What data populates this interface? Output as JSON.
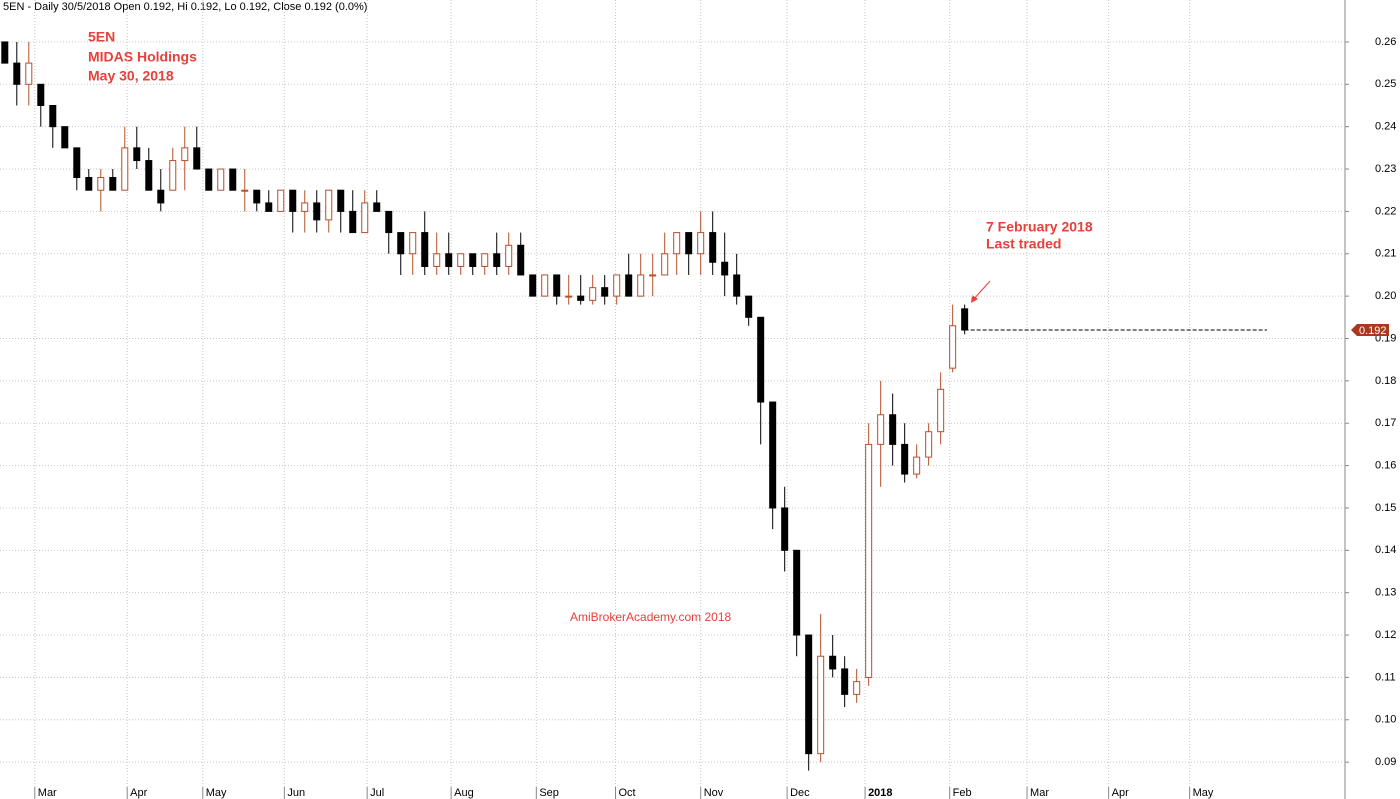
{
  "chart_data": {
    "type": "candlestick",
    "title": "5EN - Daily 30/5/2018 Open 0.192, Hi 0.192, Lo 0.192, Close 0.192 (0.0%)",
    "annotations": [
      "5EN",
      "MIDAS Holdings",
      "May 30, 2018",
      "7 February 2018",
      "Last traded",
      "AmiBrokerAcademy.com 2018"
    ],
    "up_color": "#b4502a",
    "down_color": "#000000",
    "last_price": 0.192,
    "open": [
      0.26,
      0.255,
      0.25,
      0.25,
      0.245,
      0.24,
      0.235,
      0.228,
      0.225,
      0.228,
      0.225,
      0.235,
      0.232,
      0.225,
      0.225,
      0.232,
      0.235,
      0.23,
      0.225,
      0.23,
      0.225,
      0.225,
      0.222,
      0.22,
      0.225,
      0.22,
      0.222,
      0.218,
      0.225,
      0.22,
      0.215,
      0.222,
      0.22,
      0.215,
      0.21,
      0.215,
      0.207,
      0.21,
      0.207,
      0.21,
      0.207,
      0.21,
      0.207,
      0.212,
      0.205,
      0.2,
      0.205,
      0.2,
      0.2,
      0.199,
      0.202,
      0.2,
      0.205,
      0.2,
      0.205,
      0.205,
      0.21,
      0.215,
      0.21,
      0.215,
      0.208,
      0.205,
      0.2,
      0.195,
      0.175,
      0.15,
      0.14,
      0.12,
      0.092,
      0.115,
      0.112,
      0.106,
      0.11,
      0.165,
      0.172,
      0.165,
      0.158,
      0.162,
      0.168,
      0.183,
      0.197
    ],
    "high": [
      0.26,
      0.26,
      0.26,
      0.25,
      0.245,
      0.24,
      0.235,
      0.23,
      0.23,
      0.23,
      0.24,
      0.24,
      0.235,
      0.23,
      0.235,
      0.24,
      0.24,
      0.23,
      0.23,
      0.23,
      0.23,
      0.225,
      0.225,
      0.225,
      0.225,
      0.225,
      0.225,
      0.225,
      0.225,
      0.225,
      0.225,
      0.225,
      0.22,
      0.215,
      0.215,
      0.22,
      0.215,
      0.215,
      0.21,
      0.21,
      0.21,
      0.215,
      0.215,
      0.215,
      0.205,
      0.205,
      0.205,
      0.205,
      0.205,
      0.205,
      0.205,
      0.205,
      0.21,
      0.21,
      0.21,
      0.215,
      0.215,
      0.215,
      0.22,
      0.22,
      0.215,
      0.21,
      0.2,
      0.195,
      0.175,
      0.155,
      0.14,
      0.12,
      0.125,
      0.12,
      0.115,
      0.112,
      0.17,
      0.18,
      0.177,
      0.17,
      0.165,
      0.17,
      0.182,
      0.198,
      0.198
    ],
    "low": [
      0.255,
      0.245,
      0.245,
      0.24,
      0.235,
      0.235,
      0.225,
      0.225,
      0.22,
      0.225,
      0.225,
      0.23,
      0.225,
      0.22,
      0.225,
      0.225,
      0.23,
      0.225,
      0.225,
      0.225,
      0.22,
      0.22,
      0.22,
      0.22,
      0.215,
      0.215,
      0.215,
      0.215,
      0.215,
      0.215,
      0.215,
      0.22,
      0.21,
      0.205,
      0.205,
      0.205,
      0.205,
      0.205,
      0.205,
      0.205,
      0.205,
      0.205,
      0.205,
      0.205,
      0.2,
      0.2,
      0.198,
      0.198,
      0.198,
      0.198,
      0.198,
      0.198,
      0.2,
      0.2,
      0.2,
      0.205,
      0.205,
      0.205,
      0.205,
      0.205,
      0.2,
      0.198,
      0.193,
      0.165,
      0.145,
      0.135,
      0.115,
      0.088,
      0.09,
      0.11,
      0.103,
      0.104,
      0.108,
      0.155,
      0.16,
      0.156,
      0.157,
      0.16,
      0.165,
      0.182,
      0.191
    ],
    "close": [
      0.255,
      0.25,
      0.255,
      0.245,
      0.24,
      0.235,
      0.228,
      0.225,
      0.228,
      0.225,
      0.235,
      0.232,
      0.225,
      0.222,
      0.232,
      0.235,
      0.23,
      0.225,
      0.23,
      0.225,
      0.225,
      0.222,
      0.22,
      0.225,
      0.22,
      0.222,
      0.218,
      0.225,
      0.22,
      0.215,
      0.222,
      0.22,
      0.215,
      0.21,
      0.215,
      0.207,
      0.21,
      0.207,
      0.21,
      0.207,
      0.21,
      0.207,
      0.212,
      0.205,
      0.2,
      0.205,
      0.2,
      0.2,
      0.199,
      0.202,
      0.2,
      0.205,
      0.2,
      0.205,
      0.205,
      0.21,
      0.215,
      0.21,
      0.215,
      0.208,
      0.205,
      0.2,
      0.195,
      0.175,
      0.15,
      0.14,
      0.12,
      0.092,
      0.115,
      0.112,
      0.106,
      0.109,
      0.165,
      0.172,
      0.165,
      0.158,
      0.162,
      0.168,
      0.178,
      0.193,
      0.192
    ],
    "xlim": [
      -0.4,
      111.7
    ],
    "xticks": [
      {
        "value": 2.5,
        "label": "Mar"
      },
      {
        "value": 10.2,
        "label": "Apr"
      },
      {
        "value": 16.5,
        "label": "May"
      },
      {
        "value": 23.3,
        "label": "Jun"
      },
      {
        "value": 30.2,
        "label": "Jul"
      },
      {
        "value": 37.2,
        "label": "Aug"
      },
      {
        "value": 44.3,
        "label": "Sep"
      },
      {
        "value": 50.9,
        "label": "Oct"
      },
      {
        "value": 58.0,
        "label": "Nov"
      },
      {
        "value": 65.2,
        "label": "Dec"
      },
      {
        "value": 71.7,
        "label": "2018"
      },
      {
        "value": 78.75,
        "label": "Feb"
      },
      {
        "value": 85.2,
        "label": "Mar"
      },
      {
        "value": 92.0,
        "label": "Apr"
      },
      {
        "value": 98.75,
        "label": "May"
      }
    ],
    "ylim": [
      0.0813,
      0.2699
    ],
    "yticks": [
      0.09,
      {
        "value": 0.1,
        "label": "0.10"
      },
      0.11,
      0.12,
      0.13,
      0.14,
      0.15,
      0.16,
      0.17,
      0.18,
      0.19,
      {
        "value": 0.2,
        "label": "0.20"
      },
      0.21,
      0.22,
      0.23,
      0.24,
      0.25,
      0.26
    ],
    "grid": true
  }
}
